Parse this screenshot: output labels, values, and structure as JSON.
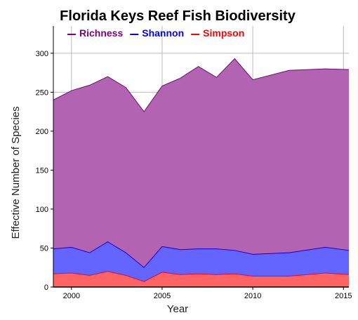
{
  "chart_data": {
    "type": "area",
    "title": "Florida Keys Reef Fish Biodiversity",
    "xlabel": "Year",
    "ylabel": "Effective Number of Species",
    "xlim": [
      1999,
      2015.3
    ],
    "ylim": [
      0,
      335
    ],
    "x_ticks": [
      2000,
      2005,
      2010,
      2015
    ],
    "x_tick_labels": [
      "2000",
      "2005",
      "2010",
      "2015"
    ],
    "y_ticks": [
      0,
      50,
      100,
      150,
      200,
      250,
      300
    ],
    "y_tick_labels": [
      "0",
      "50",
      "100",
      "150",
      "200",
      "250",
      "300"
    ],
    "grid": true,
    "legend_position": "top-left",
    "x": [
      1999,
      2000,
      2001,
      2002,
      2003,
      2004,
      2005,
      2006,
      2007,
      2008,
      2009,
      2010,
      2012,
      2014,
      2015.3
    ],
    "series": [
      {
        "name": "Richness",
        "color": "#800080",
        "fill": "#b264b2",
        "values": [
          240,
          252,
          259,
          270,
          256,
          225,
          258,
          268,
          283,
          269,
          293,
          266,
          278,
          280,
          279
        ]
      },
      {
        "name": "Shannon",
        "color": "#0000ff",
        "fill": "#6464ff",
        "values": [
          49,
          51,
          44,
          58,
          44,
          25,
          52,
          48,
          49,
          49,
          47,
          42,
          44,
          51,
          47
        ]
      },
      {
        "name": "Simpson",
        "color": "#ff0000",
        "fill": "#ff6464",
        "values": [
          17,
          18,
          15,
          20,
          15,
          7,
          19,
          16,
          17,
          16,
          17,
          14,
          14,
          18,
          16
        ]
      }
    ]
  }
}
